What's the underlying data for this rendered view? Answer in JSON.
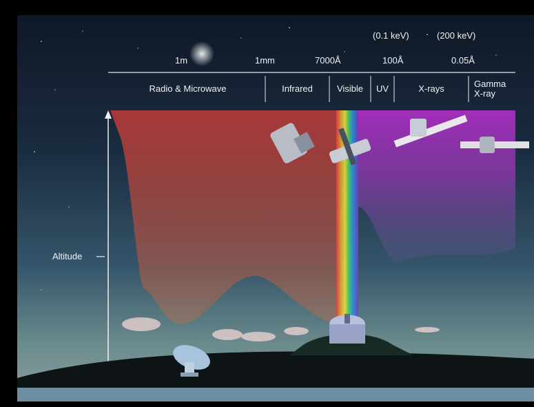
{
  "wavelength_labels": {
    "w1": "1m",
    "w2": "1mm",
    "w3": "7000Å",
    "w4": "100Å",
    "w5": "0.05Å"
  },
  "energy_labels": {
    "e1": "(0.1 keV)",
    "e2": "(200 keV)"
  },
  "bands": {
    "radio": "Radio & Microwave",
    "infrared": "Infrared",
    "visible": "Visible",
    "uv": "UV",
    "xrays": "X-rays",
    "gamma_line1": "Gamma",
    "gamma_line2": "X-ray"
  },
  "axis": {
    "label": "Altitude"
  }
}
